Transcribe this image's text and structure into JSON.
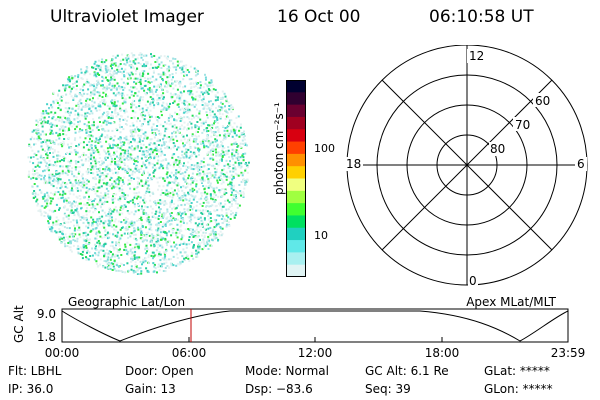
{
  "header": {
    "title": "Ultraviolet Imager",
    "date": "16 Oct 00",
    "time": "06:10:58 UT"
  },
  "colorbar": {
    "unit_label": "photon cm⁻²s⁻¹",
    "ticks": [
      "100",
      "10"
    ],
    "colors": [
      "#000030",
      "#300030",
      "#6a0030",
      "#a00020",
      "#d80010",
      "#ff4000",
      "#ff9000",
      "#ffd000",
      "#f0ff80",
      "#a0ff40",
      "#40ff30",
      "#00e060",
      "#20d0c0",
      "#60e8e8",
      "#a8f0f0",
      "#e0f4f4"
    ]
  },
  "polar_plot": {
    "mlt_labels": [
      "12",
      "18",
      "6",
      "0"
    ],
    "lat_labels": [
      "60",
      "70",
      "80"
    ]
  },
  "timeline": {
    "left_title": "Geographic Lat/Lon",
    "right_title": "Apex MLat/MLT",
    "y_axis_label": "GC Alt",
    "y_ticks": [
      "9.0",
      "1.8"
    ],
    "time_ticks": [
      "00:00",
      "06:00",
      "12:00",
      "18:00",
      "23:59"
    ],
    "marker_color": "#c00000"
  },
  "status": {
    "filter": "Flt: LBHL",
    "ip": "IP: 36.0",
    "door": "Door: Open",
    "gain": "Gain: 13",
    "mode": "Mode: Normal",
    "dsp": "Dsp:  −83.6",
    "gc_alt": "GC Alt: 6.1 Re",
    "seq": "Seq: 39",
    "glat": "GLat: *****",
    "glon": "GLon: *****"
  }
}
